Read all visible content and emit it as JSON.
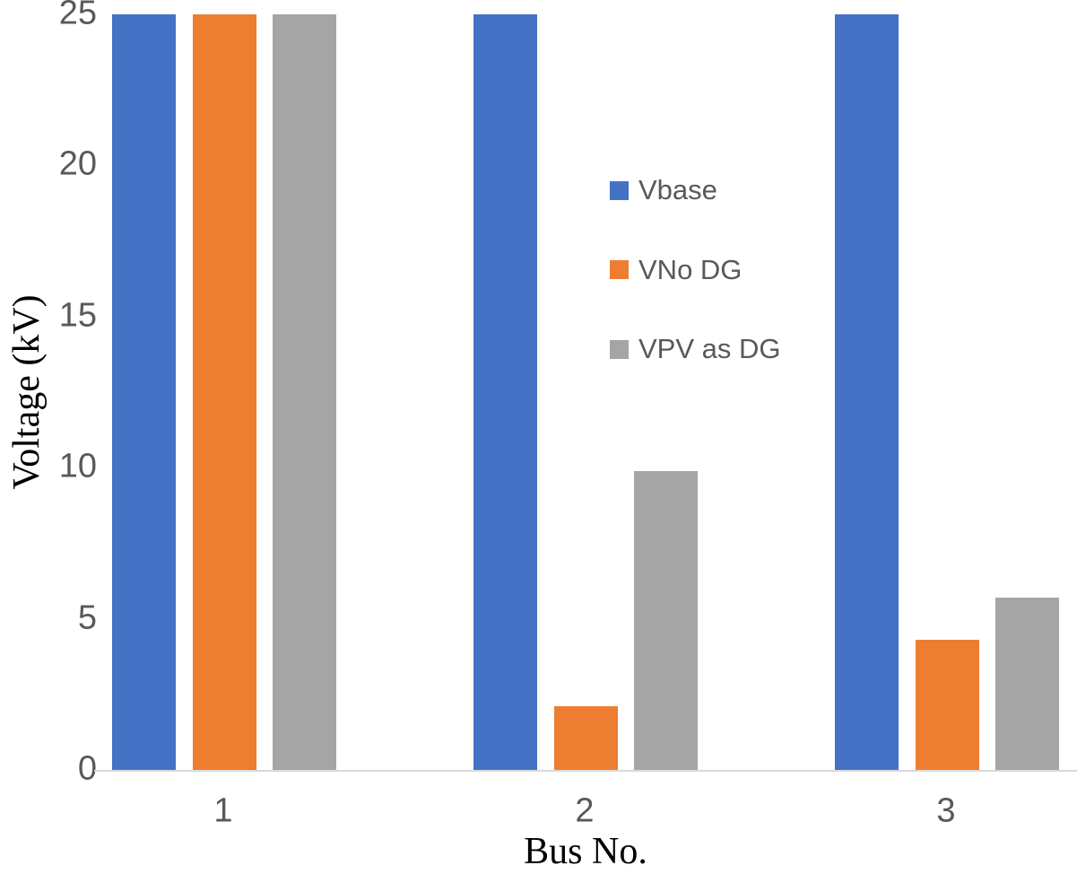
{
  "chart_data": {
    "type": "bar",
    "title": "",
    "categories": [
      "1",
      "2",
      "3"
    ],
    "series": [
      {
        "name": "Vbase",
        "color": "#4472C4",
        "values": [
          25,
          25,
          25
        ]
      },
      {
        "name": "VNo DG",
        "color": "#ED7D31",
        "values": [
          25,
          2.1,
          4.3
        ]
      },
      {
        "name": "VPV as DG",
        "color": "#A5A5A5",
        "values": [
          25,
          9.9,
          5.7
        ]
      }
    ],
    "xlabel": "Bus No.",
    "ylabel": "Voltage (kV)",
    "ylim": [
      0,
      25
    ],
    "yticks": [
      0,
      5,
      10,
      15,
      20,
      25
    ],
    "grid": false,
    "legend_position": "inside-center-right",
    "colors": {
      "background": "#FFFFFF",
      "axis_line": "#D9D9D9",
      "tick_label": "#595959",
      "legend_text": "#595959",
      "axis_title": "#000000"
    }
  }
}
